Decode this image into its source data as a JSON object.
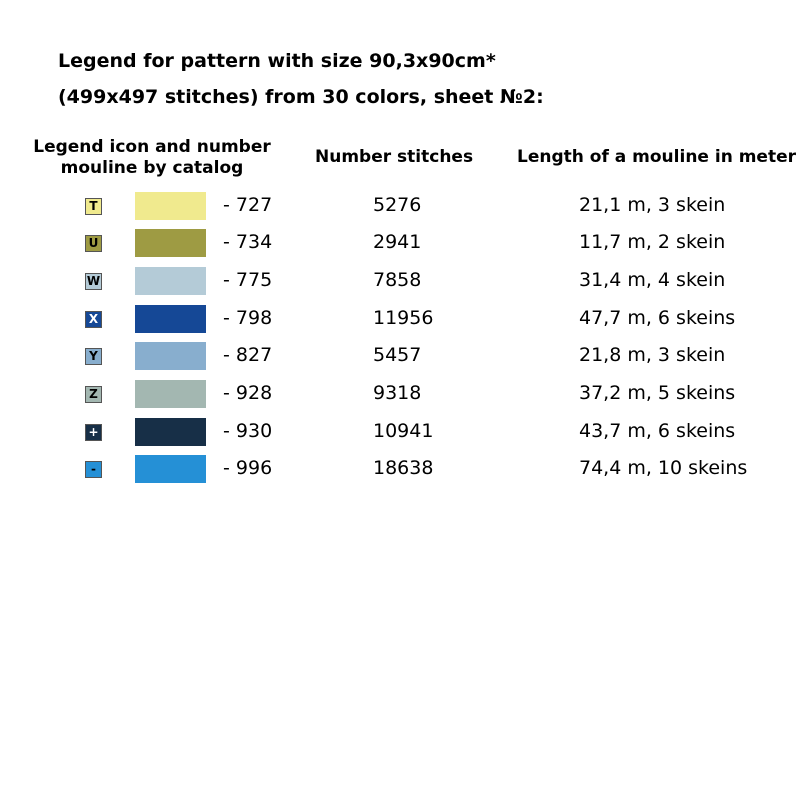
{
  "title": {
    "line1": "Legend for pattern with size 90,3x90cm*",
    "line2": "(499x497 stitches) from 30 colors, sheet №2:"
  },
  "headers": {
    "legend_line1": "Legend icon and number",
    "legend_line2": "mouline by catalog",
    "stitches": "Number stitches",
    "length": "Length of a mouline in meter"
  },
  "rows": [
    {
      "symbol": "T",
      "code": "- 727",
      "stitches": "5276",
      "length": "21,1 m, 3 skein",
      "color": "#f0ea8e",
      "symbol_color": "#000000"
    },
    {
      "symbol": "U",
      "code": "- 734",
      "stitches": "2941",
      "length": "11,7 m, 2 skein",
      "color": "#9e9b43",
      "symbol_color": "#000000"
    },
    {
      "symbol": "W",
      "code": "- 775",
      "stitches": "7858",
      "length": "31,4 m, 4 skein",
      "color": "#b4cbd7",
      "symbol_color": "#000000"
    },
    {
      "symbol": "X",
      "code": "- 798",
      "stitches": "11956",
      "length": "47,7 m, 6 skeins",
      "color": "#154896",
      "symbol_color": "#ffffff"
    },
    {
      "symbol": "Y",
      "code": "- 827",
      "stitches": "5457",
      "length": "21,8 m, 3 skein",
      "color": "#88aece",
      "symbol_color": "#000000"
    },
    {
      "symbol": "Z",
      "code": "- 928",
      "stitches": "9318",
      "length": "37,2 m, 5 skeins",
      "color": "#a3b7b1",
      "symbol_color": "#000000"
    },
    {
      "symbol": "+",
      "code": "- 930",
      "stitches": "10941",
      "length": "43,7 m, 6 skeins",
      "color": "#172f47",
      "symbol_color": "#ffffff"
    },
    {
      "symbol": "-",
      "code": "- 996",
      "stitches": "18638",
      "length": "74,4 m, 10 skeins",
      "color": "#2590d6",
      "symbol_color": "#000000"
    }
  ]
}
